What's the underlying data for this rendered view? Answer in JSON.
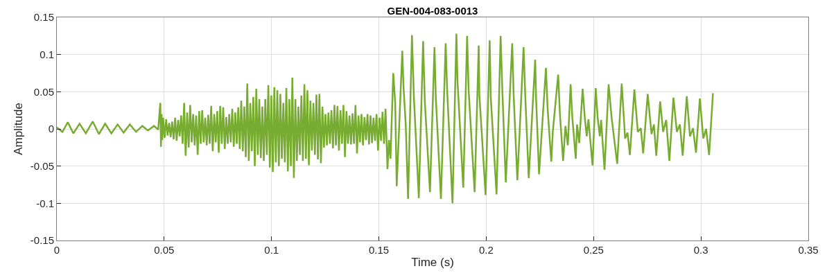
{
  "chart_data": {
    "type": "line",
    "title": "GEN-004-083-0013",
    "xlabel": "Time (s)",
    "ylabel": "Amplitude",
    "x": [
      0,
      0.0026,
      0.0051,
      0.0077,
      0.0106,
      0.0135,
      0.0167,
      0.0196,
      0.0225,
      0.0254,
      0.0283,
      0.0311,
      0.034,
      0.0369,
      0.0398,
      0.0424,
      0.0453,
      0.0472,
      0.0482,
      0.0485,
      0.0488,
      0.0491,
      0.0495,
      0.0502,
      0.0509,
      0.0516,
      0.0523,
      0.053,
      0.0537,
      0.0544,
      0.0551,
      0.0558,
      0.0565,
      0.0572,
      0.0579,
      0.0586,
      0.0593,
      0.06,
      0.0607,
      0.0614,
      0.0621,
      0.0628,
      0.0635,
      0.0642,
      0.0649,
      0.0656,
      0.0663,
      0.067,
      0.0677,
      0.0684,
      0.0691,
      0.0698,
      0.0705,
      0.0712,
      0.0719,
      0.0726,
      0.0733,
      0.074,
      0.0747,
      0.0754,
      0.0761,
      0.0768,
      0.0775,
      0.0782,
      0.0789,
      0.0796,
      0.0803,
      0.081,
      0.0817,
      0.0824,
      0.0831,
      0.0838,
      0.0845,
      0.0852,
      0.0859,
      0.0866,
      0.0873,
      0.088,
      0.0887,
      0.0894,
      0.0901,
      0.0908,
      0.0915,
      0.0922,
      0.0929,
      0.0936,
      0.0943,
      0.095,
      0.0957,
      0.0964,
      0.0971,
      0.0978,
      0.0985,
      0.0992,
      0.0999,
      0.1006,
      0.1013,
      0.102,
      0.1027,
      0.1034,
      0.1041,
      0.1048,
      0.1055,
      0.1062,
      0.1069,
      0.1076,
      0.1083,
      0.109,
      0.1097,
      0.1104,
      0.1111,
      0.1118,
      0.1125,
      0.1132,
      0.1139,
      0.1146,
      0.1153,
      0.116,
      0.1167,
      0.1174,
      0.1181,
      0.1188,
      0.1195,
      0.1202,
      0.1209,
      0.1216,
      0.1223,
      0.123,
      0.1237,
      0.1244,
      0.1251,
      0.1258,
      0.1265,
      0.1272,
      0.1279,
      0.1286,
      0.1293,
      0.13,
      0.1307,
      0.1314,
      0.1321,
      0.1328,
      0.1335,
      0.1342,
      0.1349,
      0.1356,
      0.1363,
      0.137,
      0.1377,
      0.1384,
      0.1391,
      0.1398,
      0.1405,
      0.1412,
      0.1419,
      0.1426,
      0.1433,
      0.144,
      0.1447,
      0.1454,
      0.1461,
      0.1468,
      0.1475,
      0.1482,
      0.1489,
      0.1496,
      0.1503,
      0.151,
      0.1517,
      0.1524,
      0.1531,
      0.154,
      0.1547,
      0.1554,
      0.1567,
      0.1576,
      0.1583,
      0.1609,
      0.1615,
      0.1625,
      0.1636,
      0.1654,
      0.1663,
      0.1686,
      0.1706,
      0.1714,
      0.1738,
      0.1759,
      0.1765,
      0.1789,
      0.1811,
      0.1818,
      0.1843,
      0.1861,
      0.1866,
      0.1893,
      0.1911,
      0.1918,
      0.1946,
      0.1965,
      0.1968,
      0.1997,
      0.2016,
      0.2021,
      0.2048,
      0.2067,
      0.2075,
      0.2091,
      0.2121,
      0.2128,
      0.2145,
      0.2174,
      0.2182,
      0.2198,
      0.2228,
      0.2232,
      0.2246,
      0.2278,
      0.2286,
      0.2303,
      0.231,
      0.2335,
      0.2343,
      0.2358,
      0.2369,
      0.238,
      0.2393,
      0.2401,
      0.2417,
      0.2423,
      0.2433,
      0.2449,
      0.246,
      0.2468,
      0.2476,
      0.2495,
      0.251,
      0.2519,
      0.2529,
      0.2535,
      0.2551,
      0.257,
      0.2584,
      0.261,
      0.2631,
      0.2647,
      0.2658,
      0.2669,
      0.269,
      0.2706,
      0.272,
      0.2731,
      0.2752,
      0.277,
      0.2781,
      0.2792,
      0.281,
      0.2824,
      0.2838,
      0.2853,
      0.2872,
      0.2888,
      0.2902,
      0.2915,
      0.2934,
      0.2949,
      0.2963,
      0.2977,
      0.2995,
      0.3011,
      0.3024,
      0.3038,
      0.3056
    ],
    "series": [
      {
        "color": "#77ac30",
        "values": [
          0.002,
          -0.004,
          0.009,
          -0.006,
          0.007,
          -0.006,
          0.01,
          -0.007,
          0.007,
          -0.006,
          0.006,
          -0.005,
          0.006,
          -0.004,
          0.004,
          -0.002,
          0.004,
          -0.001,
          0.035,
          -0.024,
          0.02,
          -0.015,
          0.015,
          -0.012,
          0.013,
          -0.009,
          0.008,
          -0.011,
          0.01,
          -0.014,
          0.015,
          -0.016,
          0.012,
          -0.01,
          0.018,
          -0.02,
          0.035,
          -0.036,
          0.022,
          -0.025,
          0.032,
          -0.018,
          0.02,
          -0.022,
          0.018,
          -0.035,
          0.024,
          -0.02,
          0.025,
          -0.018,
          0.015,
          -0.022,
          0.019,
          -0.02,
          0.031,
          -0.03,
          0.02,
          -0.018,
          0.024,
          -0.032,
          0.031,
          -0.02,
          0.029,
          -0.027,
          0.016,
          -0.02,
          0.02,
          -0.018,
          0.027,
          -0.024,
          0.022,
          -0.02,
          0.029,
          -0.027,
          0.038,
          -0.03,
          0.03,
          -0.038,
          0.061,
          -0.043,
          0.035,
          -0.03,
          0.043,
          -0.05,
          0.054,
          -0.035,
          0.04,
          -0.039,
          0.03,
          -0.043,
          0.04,
          -0.035,
          0.059,
          -0.052,
          0.045,
          -0.058,
          0.056,
          -0.045,
          0.052,
          -0.05,
          0.047,
          -0.04,
          0.035,
          -0.045,
          0.055,
          -0.057,
          0.04,
          -0.05,
          0.069,
          -0.066,
          0.04,
          -0.043,
          0.03,
          -0.035,
          0.045,
          -0.043,
          0.06,
          -0.04,
          0.052,
          -0.049,
          0.038,
          -0.029,
          0.035,
          -0.035,
          0.046,
          -0.041,
          0.047,
          -0.046,
          0.03,
          -0.025,
          0.02,
          -0.022,
          0.022,
          -0.02,
          0.025,
          -0.026,
          0.032,
          -0.022,
          0.031,
          -0.029,
          0.025,
          -0.02,
          0.032,
          -0.038,
          0.024,
          -0.02,
          0.018,
          -0.021,
          0.021,
          -0.02,
          0.032,
          -0.033,
          0.018,
          -0.018,
          0.02,
          -0.022,
          0.016,
          -0.015,
          0.02,
          -0.021,
          0.018,
          -0.019,
          0.015,
          -0.016,
          0.02,
          -0.029,
          0.015,
          -0.016,
          0.023,
          -0.02,
          0.027,
          -0.054,
          -0.015,
          -0.04,
          0.075,
          0.035,
          -0.077,
          0.105,
          0.055,
          0.006,
          -0.094,
          0.126,
          0.043,
          -0.093,
          0.118,
          0.037,
          -0.085,
          0.11,
          0.043,
          -0.094,
          0.115,
          0.052,
          -0.1,
          0.128,
          0.065,
          -0.079,
          0.125,
          0.052,
          -0.085,
          0.112,
          0.046,
          -0.089,
          0.119,
          0.043,
          -0.088,
          0.125,
          0.052,
          -0.072,
          0.115,
          0.043,
          -0.069,
          0.11,
          0.043,
          -0.066,
          0.093,
          0.043,
          -0.061,
          0.082,
          0.027,
          -0.044,
          -0.004,
          0.073,
          0.021,
          -0.043,
          0.004,
          -0.022,
          0.06,
          0.015,
          -0.04,
          0.006,
          -0.019,
          0.054,
          0.012,
          -0.01,
          0.013,
          -0.049,
          0.055,
          0.015,
          -0.01,
          0.012,
          -0.055,
          0.06,
          0.015,
          -0.047,
          0.061,
          -0.013,
          -0.005,
          -0.035,
          0.053,
          -0.004,
          0.001,
          -0.033,
          0.047,
          -0.007,
          0.006,
          -0.036,
          0.037,
          -0.004,
          0.012,
          -0.043,
          0.042,
          -0.004,
          0.006,
          -0.036,
          0.044,
          -0.01,
          0.001,
          -0.032,
          0.041,
          -0.013,
          0.0,
          -0.035,
          0.048
        ]
      }
    ],
    "xlim": [
      0,
      0.35
    ],
    "xticks": [
      0,
      0.05,
      0.1,
      0.15,
      0.2,
      0.25,
      0.3,
      0.35
    ],
    "ylim": [
      -0.15,
      0.15
    ],
    "yticks": [
      -0.15,
      -0.1,
      -0.05,
      0,
      0.05,
      0.1,
      0.15
    ],
    "grid": true,
    "line_style": "solid"
  }
}
